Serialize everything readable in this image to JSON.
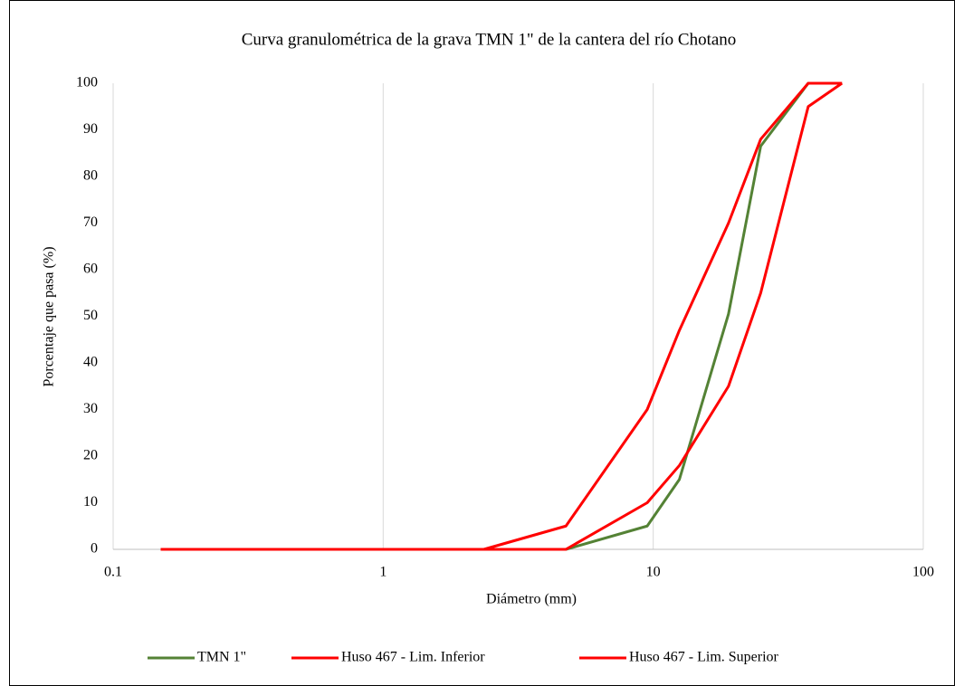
{
  "chart_data": {
    "type": "line",
    "title": "Curva granulométrica de la grava TMN 1\" de la cantera del río Chotano",
    "x_label": "Diámetro (mm)",
    "y_label": "Porcentaje que pasa (%)",
    "x": [
      0.15,
      0.3,
      0.6,
      1.18,
      2.36,
      4.75,
      9.5,
      12.5,
      19,
      25,
      37.5,
      50
    ],
    "series": [
      {
        "name": "TMN 1\"",
        "color": "#548235",
        "values": [
          0,
          0,
          0,
          0,
          0,
          0,
          5,
          15,
          50.5,
          86.5,
          100,
          100
        ]
      },
      {
        "name": "Huso 467 - Lim. Inferior",
        "color": "#ff0000",
        "values": [
          0,
          0,
          0,
          0,
          0,
          0,
          10,
          18,
          35,
          55,
          95,
          100
        ]
      },
      {
        "name": "Huso 467 - Lim. Superior",
        "color": "#ff0000",
        "values": [
          0,
          0,
          0,
          0,
          0,
          5,
          30,
          47,
          70,
          88,
          100,
          100
        ]
      }
    ],
    "xlim": [
      0.1,
      100
    ],
    "xticks": [
      0.1,
      1,
      10,
      100
    ],
    "xscale": "log",
    "ylim": [
      0,
      100
    ],
    "yticks": [
      0,
      10,
      20,
      30,
      40,
      50,
      60,
      70,
      80,
      90,
      100
    ],
    "grid": "x",
    "legend": "bottom"
  }
}
